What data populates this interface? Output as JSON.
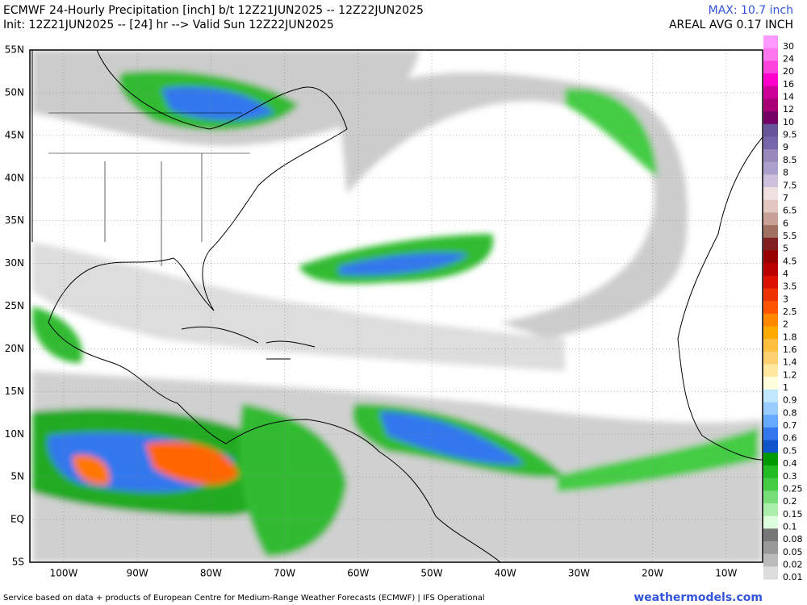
{
  "header": {
    "title": "ECMWF 24-Hourly Precipitation [inch] b/t 12Z21JUN2025 -- 12Z22JUN2025",
    "subtitle": "Init: 12Z21JUN2025 -- [24] hr --> Valid Sun 12Z22JUN2025",
    "max": "MAX: 10.7 inch",
    "areal_avg": "AREAL AVG 0.17 INCH"
  },
  "map": {
    "lat_labels": [
      "55N",
      "50N",
      "45N",
      "40N",
      "35N",
      "30N",
      "25N",
      "20N",
      "15N",
      "10N",
      "5N",
      "EQ",
      "5S"
    ],
    "lon_labels": [
      "100W",
      "90W",
      "80W",
      "70W",
      "60W",
      "50W",
      "40W",
      "30W",
      "20W",
      "10W"
    ]
  },
  "colorbar": {
    "labels": [
      "30",
      "24",
      "20",
      "16",
      "14",
      "12",
      "10",
      "9.5",
      "9",
      "8.5",
      "8",
      "7.5",
      "7",
      "6.5",
      "6",
      "5.5",
      "5",
      "4.5",
      "4",
      "3.5",
      "3",
      "2.5",
      "2",
      "1.8",
      "1.6",
      "1.4",
      "1.2",
      "1",
      "0.9",
      "0.8",
      "0.7",
      "0.6",
      "0.5",
      "0.4",
      "0.3",
      "0.25",
      "0.2",
      "0.15",
      "0.1",
      "0.08",
      "0.05",
      "0.02",
      "0.01"
    ],
    "colors": [
      "#ff99ff",
      "#ff77ee",
      "#ff44dd",
      "#ff00cc",
      "#cc0099",
      "#aa0077",
      "#770066",
      "#665599",
      "#7766aa",
      "#9988bb",
      "#aaa0cc",
      "#ccc0dd",
      "#f0e0e0",
      "#e0c8c0",
      "#c8a098",
      "#a07060",
      "#802020",
      "#990000",
      "#bb0000",
      "#dd1100",
      "#ee3300",
      "#ff5500",
      "#ff8800",
      "#ffaa00",
      "#ffc040",
      "#ffd070",
      "#ffe8a0",
      "#ffffdd",
      "#c0e8ff",
      "#99ccff",
      "#66aaff",
      "#3377ee",
      "#1155cc",
      "#009900",
      "#22bb22",
      "#44cc44",
      "#77dd77",
      "#aaeeaa",
      "#ddffdd",
      "#777777",
      "#999999",
      "#bbbbbb",
      "#dddddd"
    ]
  },
  "footer": {
    "credit": "Service based on data + products of European Centre for Medium-Range Weather Forecasts (ECMWF) | IFS Operational",
    "site": "weathermodels.com"
  }
}
